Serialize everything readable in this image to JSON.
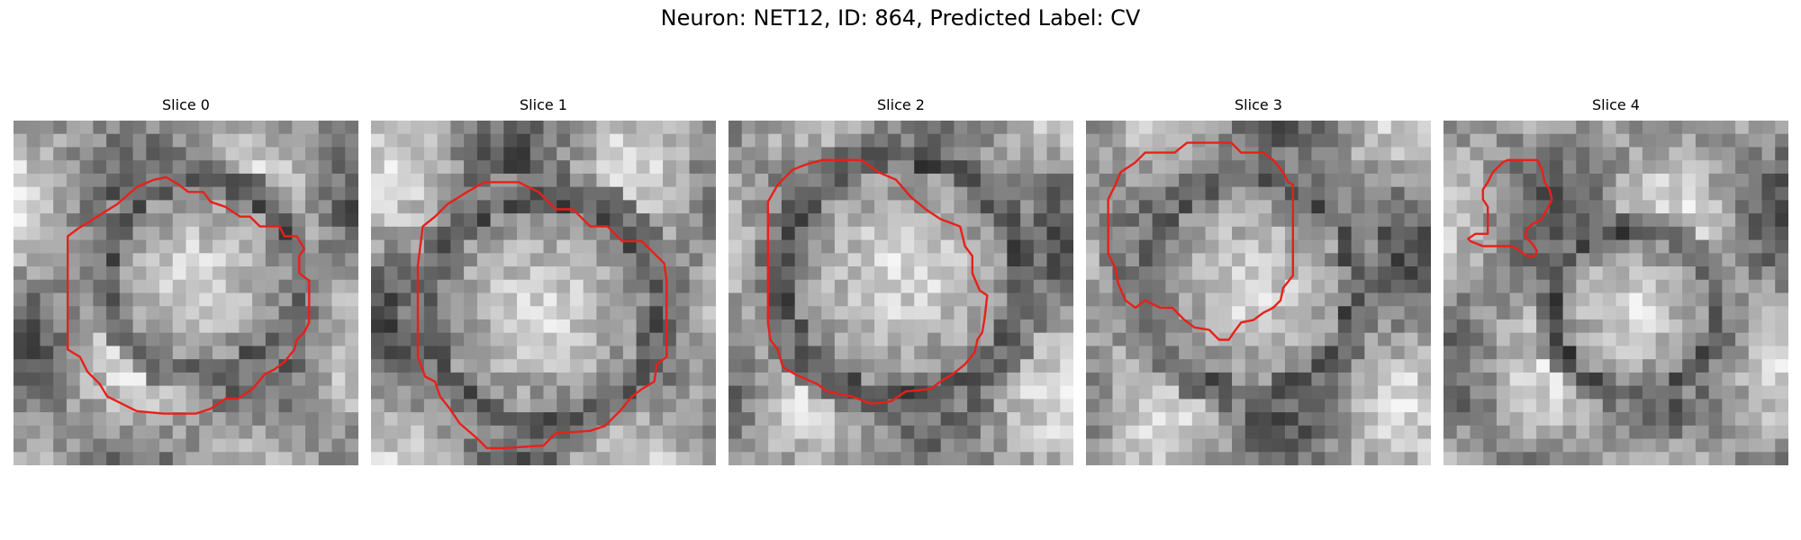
{
  "figure": {
    "title": "Neuron: NET12, ID: 864, Predicted Label: CV"
  },
  "panels": [
    {
      "title": "Slice 0",
      "image_name": "em-slice-0-grayscale",
      "seed": 11,
      "blob": [
        0.55,
        0.45,
        0.25
      ],
      "contour": [
        [
          6.7,
          2.6
        ],
        [
          7.1,
          2.9
        ],
        [
          7.7,
          2.9
        ],
        [
          8.0,
          3.3
        ],
        [
          8.6,
          3.5
        ],
        [
          9.2,
          3.9
        ],
        [
          9.6,
          3.9
        ],
        [
          10.0,
          4.3
        ],
        [
          10.8,
          4.3
        ],
        [
          11.0,
          4.7
        ],
        [
          11.5,
          4.7
        ],
        [
          11.8,
          5.2
        ],
        [
          11.6,
          5.5
        ],
        [
          11.6,
          6.2
        ],
        [
          12.0,
          6.5
        ],
        [
          12.0,
          8.2
        ],
        [
          11.8,
          8.6
        ],
        [
          11.5,
          8.9
        ],
        [
          11.4,
          9.3
        ],
        [
          11.0,
          9.8
        ],
        [
          10.6,
          10.1
        ],
        [
          10.2,
          10.3
        ],
        [
          9.7,
          10.9
        ],
        [
          9.1,
          11.3
        ],
        [
          8.6,
          11.3
        ],
        [
          8.0,
          11.7
        ],
        [
          7.4,
          11.9
        ],
        [
          6.1,
          11.9
        ],
        [
          5.0,
          11.8
        ],
        [
          4.6,
          11.6
        ],
        [
          3.8,
          11.2
        ],
        [
          3.5,
          10.7
        ],
        [
          3.0,
          10.2
        ],
        [
          2.7,
          9.6
        ],
        [
          2.2,
          9.3
        ],
        [
          2.2,
          6.5
        ],
        [
          2.2,
          4.7
        ],
        [
          2.6,
          4.4
        ],
        [
          3.4,
          3.9
        ],
        [
          4.2,
          3.4
        ],
        [
          5.0,
          2.7
        ],
        [
          5.7,
          2.4
        ],
        [
          6.2,
          2.3
        ]
      ]
    },
    {
      "title": "Slice 1",
      "image_name": "em-slice-1-grayscale",
      "seed": 23,
      "blob": [
        0.5,
        0.55,
        0.3
      ],
      "contour": [
        [
          5.4,
          2.5
        ],
        [
          6.0,
          2.5
        ],
        [
          6.8,
          2.9
        ],
        [
          7.5,
          3.6
        ],
        [
          8.2,
          3.6
        ],
        [
          8.9,
          4.3
        ],
        [
          9.6,
          4.3
        ],
        [
          10.2,
          4.9
        ],
        [
          11.0,
          4.9
        ],
        [
          11.6,
          5.5
        ],
        [
          11.9,
          5.8
        ],
        [
          12.0,
          6.5
        ],
        [
          12.0,
          8.0
        ],
        [
          12.0,
          9.6
        ],
        [
          11.6,
          9.9
        ],
        [
          11.5,
          10.6
        ],
        [
          11.0,
          10.9
        ],
        [
          10.6,
          11.2
        ],
        [
          10.1,
          11.8
        ],
        [
          9.5,
          12.4
        ],
        [
          8.9,
          12.6
        ],
        [
          7.5,
          12.7
        ],
        [
          7.0,
          13.2
        ],
        [
          5.4,
          13.3
        ],
        [
          4.7,
          13.3
        ],
        [
          4.3,
          12.9
        ],
        [
          3.6,
          12.3
        ],
        [
          3.2,
          11.7
        ],
        [
          2.8,
          11.2
        ],
        [
          2.6,
          10.6
        ],
        [
          2.2,
          10.4
        ],
        [
          1.9,
          9.6
        ],
        [
          1.9,
          8.9
        ],
        [
          1.9,
          7.4
        ],
        [
          1.9,
          5.9
        ],
        [
          2.1,
          4.3
        ],
        [
          2.6,
          3.9
        ],
        [
          3.1,
          3.4
        ],
        [
          3.9,
          2.9
        ],
        [
          4.6,
          2.5
        ]
      ]
    },
    {
      "title": "Slice 2",
      "image_name": "em-slice-2-grayscale",
      "seed": 37,
      "blob": [
        0.5,
        0.45,
        0.32
      ],
      "contour": [
        [
          3.8,
          1.6
        ],
        [
          5.4,
          1.6
        ],
        [
          6.1,
          2.1
        ],
        [
          6.8,
          2.4
        ],
        [
          7.4,
          3.1
        ],
        [
          8.0,
          3.6
        ],
        [
          8.6,
          4.0
        ],
        [
          9.4,
          4.3
        ],
        [
          9.6,
          5.1
        ],
        [
          9.9,
          5.5
        ],
        [
          9.9,
          6.2
        ],
        [
          10.2,
          6.9
        ],
        [
          10.5,
          7.1
        ],
        [
          10.4,
          8.0
        ],
        [
          10.3,
          8.6
        ],
        [
          10.1,
          8.9
        ],
        [
          10.0,
          9.4
        ],
        [
          9.6,
          9.9
        ],
        [
          9.1,
          10.3
        ],
        [
          8.6,
          10.6
        ],
        [
          8.2,
          10.9
        ],
        [
          7.2,
          11.0
        ],
        [
          6.6,
          11.4
        ],
        [
          5.8,
          11.5
        ],
        [
          5.0,
          11.2
        ],
        [
          4.0,
          11.0
        ],
        [
          3.6,
          10.7
        ],
        [
          2.7,
          10.3
        ],
        [
          2.2,
          10.0
        ],
        [
          2.0,
          9.3
        ],
        [
          1.7,
          8.9
        ],
        [
          1.6,
          8.2
        ],
        [
          1.6,
          6.9
        ],
        [
          1.6,
          5.4
        ],
        [
          1.6,
          4.0
        ],
        [
          1.6,
          3.3
        ],
        [
          2.0,
          2.6
        ],
        [
          2.6,
          2.0
        ],
        [
          3.1,
          1.8
        ]
      ]
    },
    {
      "title": "Slice 3",
      "image_name": "em-slice-3-grayscale",
      "seed": 53,
      "blob": [
        0.48,
        0.48,
        0.28
      ],
      "contour": [
        [
          5.1,
          0.9
        ],
        [
          5.9,
          0.9
        ],
        [
          6.3,
          1.3
        ],
        [
          7.2,
          1.3
        ],
        [
          7.6,
          1.6
        ],
        [
          8.0,
          2.1
        ],
        [
          8.2,
          2.5
        ],
        [
          8.4,
          2.6
        ],
        [
          8.4,
          3.8
        ],
        [
          8.4,
          5.4
        ],
        [
          8.4,
          6.3
        ],
        [
          8.0,
          6.8
        ],
        [
          7.9,
          7.3
        ],
        [
          7.6,
          7.6
        ],
        [
          7.2,
          7.8
        ],
        [
          6.8,
          8.1
        ],
        [
          6.3,
          8.2
        ],
        [
          6.0,
          8.6
        ],
        [
          5.8,
          8.9
        ],
        [
          5.4,
          8.9
        ],
        [
          5.0,
          8.5
        ],
        [
          4.4,
          8.4
        ],
        [
          4.0,
          8.1
        ],
        [
          3.5,
          7.6
        ],
        [
          3.0,
          7.6
        ],
        [
          2.4,
          7.3
        ],
        [
          2.0,
          7.6
        ],
        [
          1.6,
          7.3
        ],
        [
          1.3,
          6.6
        ],
        [
          1.2,
          6.0
        ],
        [
          0.9,
          5.4
        ],
        [
          0.9,
          4.2
        ],
        [
          0.9,
          3.2
        ],
        [
          1.2,
          2.6
        ],
        [
          1.4,
          2.1
        ],
        [
          2.0,
          1.7
        ],
        [
          2.4,
          1.3
        ],
        [
          3.6,
          1.3
        ],
        [
          4.1,
          0.9
        ],
        [
          4.6,
          0.9
        ]
      ]
    },
    {
      "title": "Slice 4",
      "image_name": "em-slice-4-grayscale",
      "seed": 71,
      "blob": [
        0.55,
        0.55,
        0.22
      ],
      "contour": [
        [
          2.6,
          1.6
        ],
        [
          3.8,
          1.6
        ],
        [
          4.0,
          2.0
        ],
        [
          4.1,
          2.5
        ],
        [
          4.3,
          2.8
        ],
        [
          4.4,
          3.2
        ],
        [
          4.2,
          3.6
        ],
        [
          4.0,
          4.0
        ],
        [
          3.6,
          4.2
        ],
        [
          3.4,
          4.4
        ],
        [
          3.3,
          4.7
        ],
        [
          3.6,
          5.0
        ],
        [
          3.8,
          5.3
        ],
        [
          3.7,
          5.5
        ],
        [
          3.4,
          5.5
        ],
        [
          3.1,
          5.3
        ],
        [
          2.8,
          5.1
        ],
        [
          2.2,
          5.1
        ],
        [
          1.6,
          5.1
        ],
        [
          1.1,
          4.9
        ],
        [
          1.0,
          4.8
        ],
        [
          1.3,
          4.6
        ],
        [
          1.8,
          4.6
        ],
        [
          1.8,
          4.0
        ],
        [
          1.8,
          3.5
        ],
        [
          1.6,
          3.2
        ],
        [
          1.6,
          2.8
        ],
        [
          1.8,
          2.5
        ],
        [
          2.0,
          2.1
        ],
        [
          2.4,
          1.7
        ]
      ]
    }
  ],
  "colors": {
    "contour": "#e8201a",
    "background": "#ffffff"
  }
}
